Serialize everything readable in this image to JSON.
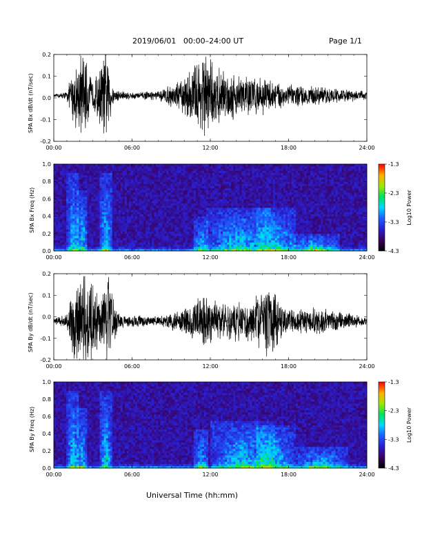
{
  "header": {
    "title": "2019/06/01   00:00–24:00 UT",
    "page": "Page 1/1"
  },
  "xaxis_label": "Universal Time (hh:mm)",
  "chart_data": [
    {
      "type": "line",
      "ylabel": "SPA Bx dB/dt (nT/sec)",
      "xlim": [
        0,
        24
      ],
      "ylim": [
        -0.2,
        0.2
      ],
      "xticks": [
        "00:00",
        "06:00",
        "12:00",
        "18:00",
        "24:00"
      ],
      "yticks": [
        "-0.2",
        "-0.1",
        "0.0",
        "0.1",
        "0.2"
      ],
      "offset": 0.01,
      "envelope": [
        {
          "hour": 0.0,
          "amp": 0.005
        },
        {
          "hour": 1.0,
          "amp": 0.02
        },
        {
          "hour": 1.5,
          "amp": 0.12
        },
        {
          "hour": 2.2,
          "amp": 0.2
        },
        {
          "hour": 3.0,
          "amp": 0.06
        },
        {
          "hour": 4.0,
          "amp": 0.2
        },
        {
          "hour": 4.6,
          "amp": 0.03
        },
        {
          "hour": 6.0,
          "amp": 0.015
        },
        {
          "hour": 8.0,
          "amp": 0.02
        },
        {
          "hour": 10.0,
          "amp": 0.08
        },
        {
          "hour": 11.5,
          "amp": 0.2
        },
        {
          "hour": 12.5,
          "amp": 0.12
        },
        {
          "hour": 14.0,
          "amp": 0.1
        },
        {
          "hour": 16.0,
          "amp": 0.08
        },
        {
          "hour": 18.0,
          "amp": 0.05
        },
        {
          "hour": 20.0,
          "amp": 0.04
        },
        {
          "hour": 22.0,
          "amp": 0.03
        },
        {
          "hour": 24.0,
          "amp": 0.02
        }
      ]
    },
    {
      "type": "heatmap",
      "ylabel": "SPA Bx Freq (Hz)",
      "xlim": [
        0,
        24
      ],
      "ylim": [
        0.0,
        1.0
      ],
      "xticks": [
        "00:00",
        "06:00",
        "12:00",
        "18:00",
        "24:00"
      ],
      "yticks": [
        "0.0",
        "0.2",
        "0.4",
        "0.6",
        "0.8",
        "1.0"
      ],
      "colorbar": {
        "label": "Log10 Power",
        "ticks": [
          "-1.3",
          "-2.3",
          "-3.3",
          "-4.3"
        ],
        "range": [
          -4.3,
          -1.3
        ]
      },
      "features": [
        {
          "hour": 1.5,
          "width": 0.5,
          "height": 0.9
        },
        {
          "hour": 2.2,
          "width": 0.4,
          "height": 0.7
        },
        {
          "hour": 4.0,
          "width": 0.5,
          "height": 0.9
        },
        {
          "hour": 11.3,
          "width": 0.6,
          "height": 0.4
        },
        {
          "hour": 14.2,
          "width": 2.5,
          "height": 0.5
        },
        {
          "hour": 17.0,
          "width": 1.5,
          "height": 0.5
        },
        {
          "hour": 20.0,
          "width": 2.0,
          "height": 0.2
        }
      ]
    },
    {
      "type": "line",
      "ylabel": "SPA By dB/dt (nT/sec)",
      "xlim": [
        0,
        24
      ],
      "ylim": [
        -0.2,
        0.2
      ],
      "xticks": [
        "00:00",
        "06:00",
        "12:00",
        "18:00",
        "24:00"
      ],
      "yticks": [
        "-0.2",
        "-0.1",
        "0.0",
        "0.1",
        "0.2"
      ],
      "offset": -0.02,
      "envelope": [
        {
          "hour": 0.0,
          "amp": 0.01
        },
        {
          "hour": 1.0,
          "amp": 0.03
        },
        {
          "hour": 1.5,
          "amp": 0.18
        },
        {
          "hour": 2.5,
          "amp": 0.2
        },
        {
          "hour": 3.5,
          "amp": 0.15
        },
        {
          "hour": 4.2,
          "amp": 0.2
        },
        {
          "hour": 5.0,
          "amp": 0.03
        },
        {
          "hour": 8.0,
          "amp": 0.02
        },
        {
          "hour": 10.0,
          "amp": 0.06
        },
        {
          "hour": 11.5,
          "amp": 0.12
        },
        {
          "hour": 13.0,
          "amp": 0.08
        },
        {
          "hour": 15.0,
          "amp": 0.09
        },
        {
          "hour": 16.5,
          "amp": 0.16
        },
        {
          "hour": 18.0,
          "amp": 0.05
        },
        {
          "hour": 20.0,
          "amp": 0.06
        },
        {
          "hour": 22.0,
          "amp": 0.04
        },
        {
          "hour": 24.0,
          "amp": 0.02
        }
      ]
    },
    {
      "type": "heatmap",
      "ylabel": "SPA By Freq (Hz)",
      "xlim": [
        0,
        24
      ],
      "ylim": [
        0.0,
        1.0
      ],
      "xticks": [
        "00:00",
        "06:00",
        "12:00",
        "18:00",
        "24:00"
      ],
      "yticks": [
        "0.0",
        "0.2",
        "0.4",
        "0.6",
        "0.8",
        "1.0"
      ],
      "colorbar": {
        "label": "Log10 Power",
        "ticks": [
          "-1.3",
          "-2.3",
          "-3.3",
          "-4.3"
        ],
        "range": [
          -4.3,
          -1.3
        ]
      },
      "features": [
        {
          "hour": 1.5,
          "width": 0.5,
          "height": 0.9
        },
        {
          "hour": 2.2,
          "width": 0.4,
          "height": 0.7
        },
        {
          "hour": 4.0,
          "width": 0.5,
          "height": 0.9
        },
        {
          "hour": 11.3,
          "width": 0.6,
          "height": 0.45
        },
        {
          "hour": 14.5,
          "width": 2.5,
          "height": 0.55
        },
        {
          "hour": 17.0,
          "width": 1.5,
          "height": 0.5
        },
        {
          "hour": 20.5,
          "width": 2.0,
          "height": 0.25
        }
      ]
    }
  ]
}
